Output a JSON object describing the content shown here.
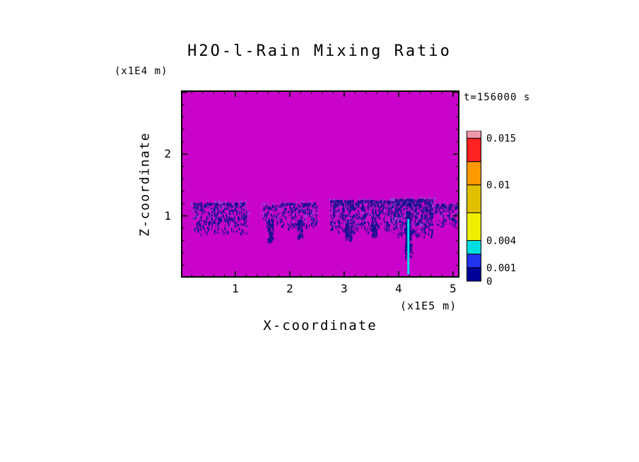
{
  "title": "H2O-l-Rain Mixing Ratio",
  "time_annotation": "t=156000 s",
  "axes": {
    "x_label": "X-coordinate",
    "x_unit": "(x1E5 m)",
    "z_label": "Z-coordinate",
    "z_unit": "(x1E4 m)"
  },
  "chart_data": {
    "type": "heatmap",
    "title": "H2O-l-Rain Mixing Ratio",
    "xlabel": "X-coordinate (x1E5 m)",
    "ylabel": "Z-coordinate (x1E4 m)",
    "time_annotation": "t=156000 s",
    "x_range": [
      0,
      5.12
    ],
    "z_range": [
      0,
      3.03
    ],
    "x_ticks": [
      1,
      2,
      3,
      4,
      5
    ],
    "z_ticks": [
      1,
      2
    ],
    "grid": false,
    "background_color": "#C903C9",
    "speckle_color": "#10128C",
    "halo_color": "#6F74E0",
    "field_description": "rain mixing ratio field: magenta background (zero), speckled dark-blue low-value bands (0-0.001) near z=1, and one high-value cyan precipitation shaft near x=4.2 reaching the surface",
    "rain_bands": [
      {
        "x0": 0.22,
        "x1": 1.2,
        "z0": 0.72,
        "z1": 1.22,
        "density": 0.55
      },
      {
        "x0": 1.5,
        "x1": 1.78,
        "z0": 0.85,
        "z1": 1.18,
        "density": 0.45
      },
      {
        "x0": 1.8,
        "x1": 2.5,
        "z0": 0.8,
        "z1": 1.22,
        "density": 0.5
      },
      {
        "x0": 2.74,
        "x1": 3.9,
        "z0": 0.74,
        "z1": 1.26,
        "density": 0.6
      },
      {
        "x0": 3.9,
        "x1": 4.62,
        "z0": 0.68,
        "z1": 1.28,
        "density": 0.78
      },
      {
        "x0": 4.66,
        "x1": 5.1,
        "z0": 0.84,
        "z1": 1.2,
        "density": 0.55
      }
    ],
    "rain_wisps": [
      {
        "x": 1.64,
        "z0": 0.58,
        "z1": 0.95,
        "w": 0.05
      },
      {
        "x": 2.18,
        "z0": 0.66,
        "z1": 0.95,
        "w": 0.05
      },
      {
        "x": 3.08,
        "z0": 0.62,
        "z1": 0.9,
        "w": 0.06
      },
      {
        "x": 3.55,
        "z0": 0.66,
        "z1": 0.92,
        "w": 0.05
      },
      {
        "x": 4.18,
        "z0": 0.35,
        "z1": 0.85,
        "w": 0.07
      }
    ],
    "rain_shaft": {
      "x": 4.18,
      "z_bottom": 0.05,
      "z_top": 0.95,
      "core_color": "#00E0E8"
    },
    "colorbar": {
      "levels": [
        0,
        0.001,
        0.004,
        0.01,
        0.015
      ],
      "segments": [
        {
          "color": "#000099",
          "f0": 0.0,
          "f1": 0.09
        },
        {
          "color": "#2233EE",
          "f0": 0.09,
          "f1": 0.18
        },
        {
          "color": "#00DDE0",
          "f0": 0.18,
          "f1": 0.27
        },
        {
          "color": "#EEEE00",
          "f0": 0.27,
          "f1": 0.455
        },
        {
          "color": "#E0C000",
          "f0": 0.455,
          "f1": 0.64
        },
        {
          "color": "#FF9900",
          "f0": 0.64,
          "f1": 0.795
        },
        {
          "color": "#FF2222",
          "f0": 0.795,
          "f1": 0.95
        },
        {
          "color": "#EE99AA",
          "f0": 0.95,
          "f1": 1.0
        }
      ],
      "tick_labels": [
        {
          "text": "0",
          "f": 0.0
        },
        {
          "text": "0.001",
          "f": 0.09
        },
        {
          "text": "0.004",
          "f": 0.27
        },
        {
          "text": "0.01",
          "f": 0.64
        },
        {
          "text": "0.015",
          "f": 0.95
        }
      ]
    }
  }
}
